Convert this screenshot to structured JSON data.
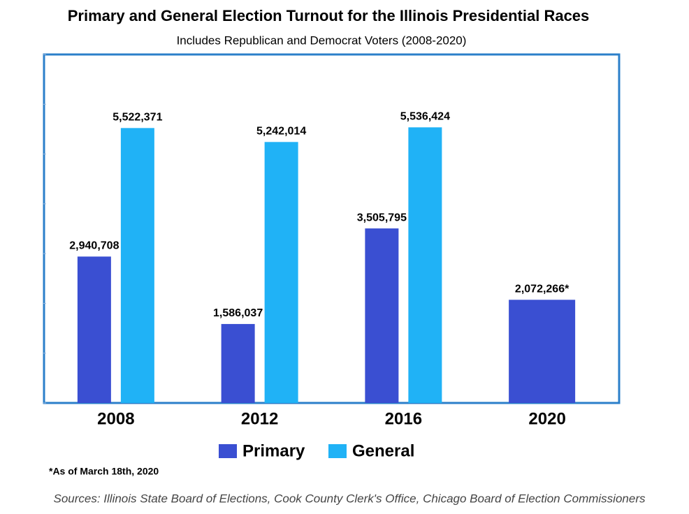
{
  "chart_data": {
    "type": "bar",
    "title": "Primary and General Election Turnout for the Illinois Presidential Races",
    "subtitle": "Includes Republican and Democrat Voters (2008-2020)",
    "categories": [
      "2008",
      "2012",
      "2016",
      "2020"
    ],
    "series": [
      {
        "name": "Primary",
        "color": "#3a4fd2",
        "values": [
          2940708,
          1586037,
          3505795,
          2072266
        ],
        "value_labels": [
          "2,940,708",
          "1,586,037",
          "3,505,795",
          "2,072,266*"
        ]
      },
      {
        "name": "General",
        "color": "#20b2f6",
        "values": [
          5522371,
          5242014,
          5536424,
          null
        ],
        "value_labels": [
          "5,522,371",
          "5,242,014",
          "5,536,424",
          null
        ]
      }
    ],
    "ylim": [
      0,
      7000000
    ],
    "yticks": [
      0,
      1000000,
      2000000,
      3000000,
      4000000,
      5000000,
      6000000,
      7000000
    ],
    "footnote": "*As of March 18th, 2020",
    "source": "Sources: Illinois State Board of Elections, Cook County Clerk's Office, Chicago Board of Election Commissioners"
  }
}
